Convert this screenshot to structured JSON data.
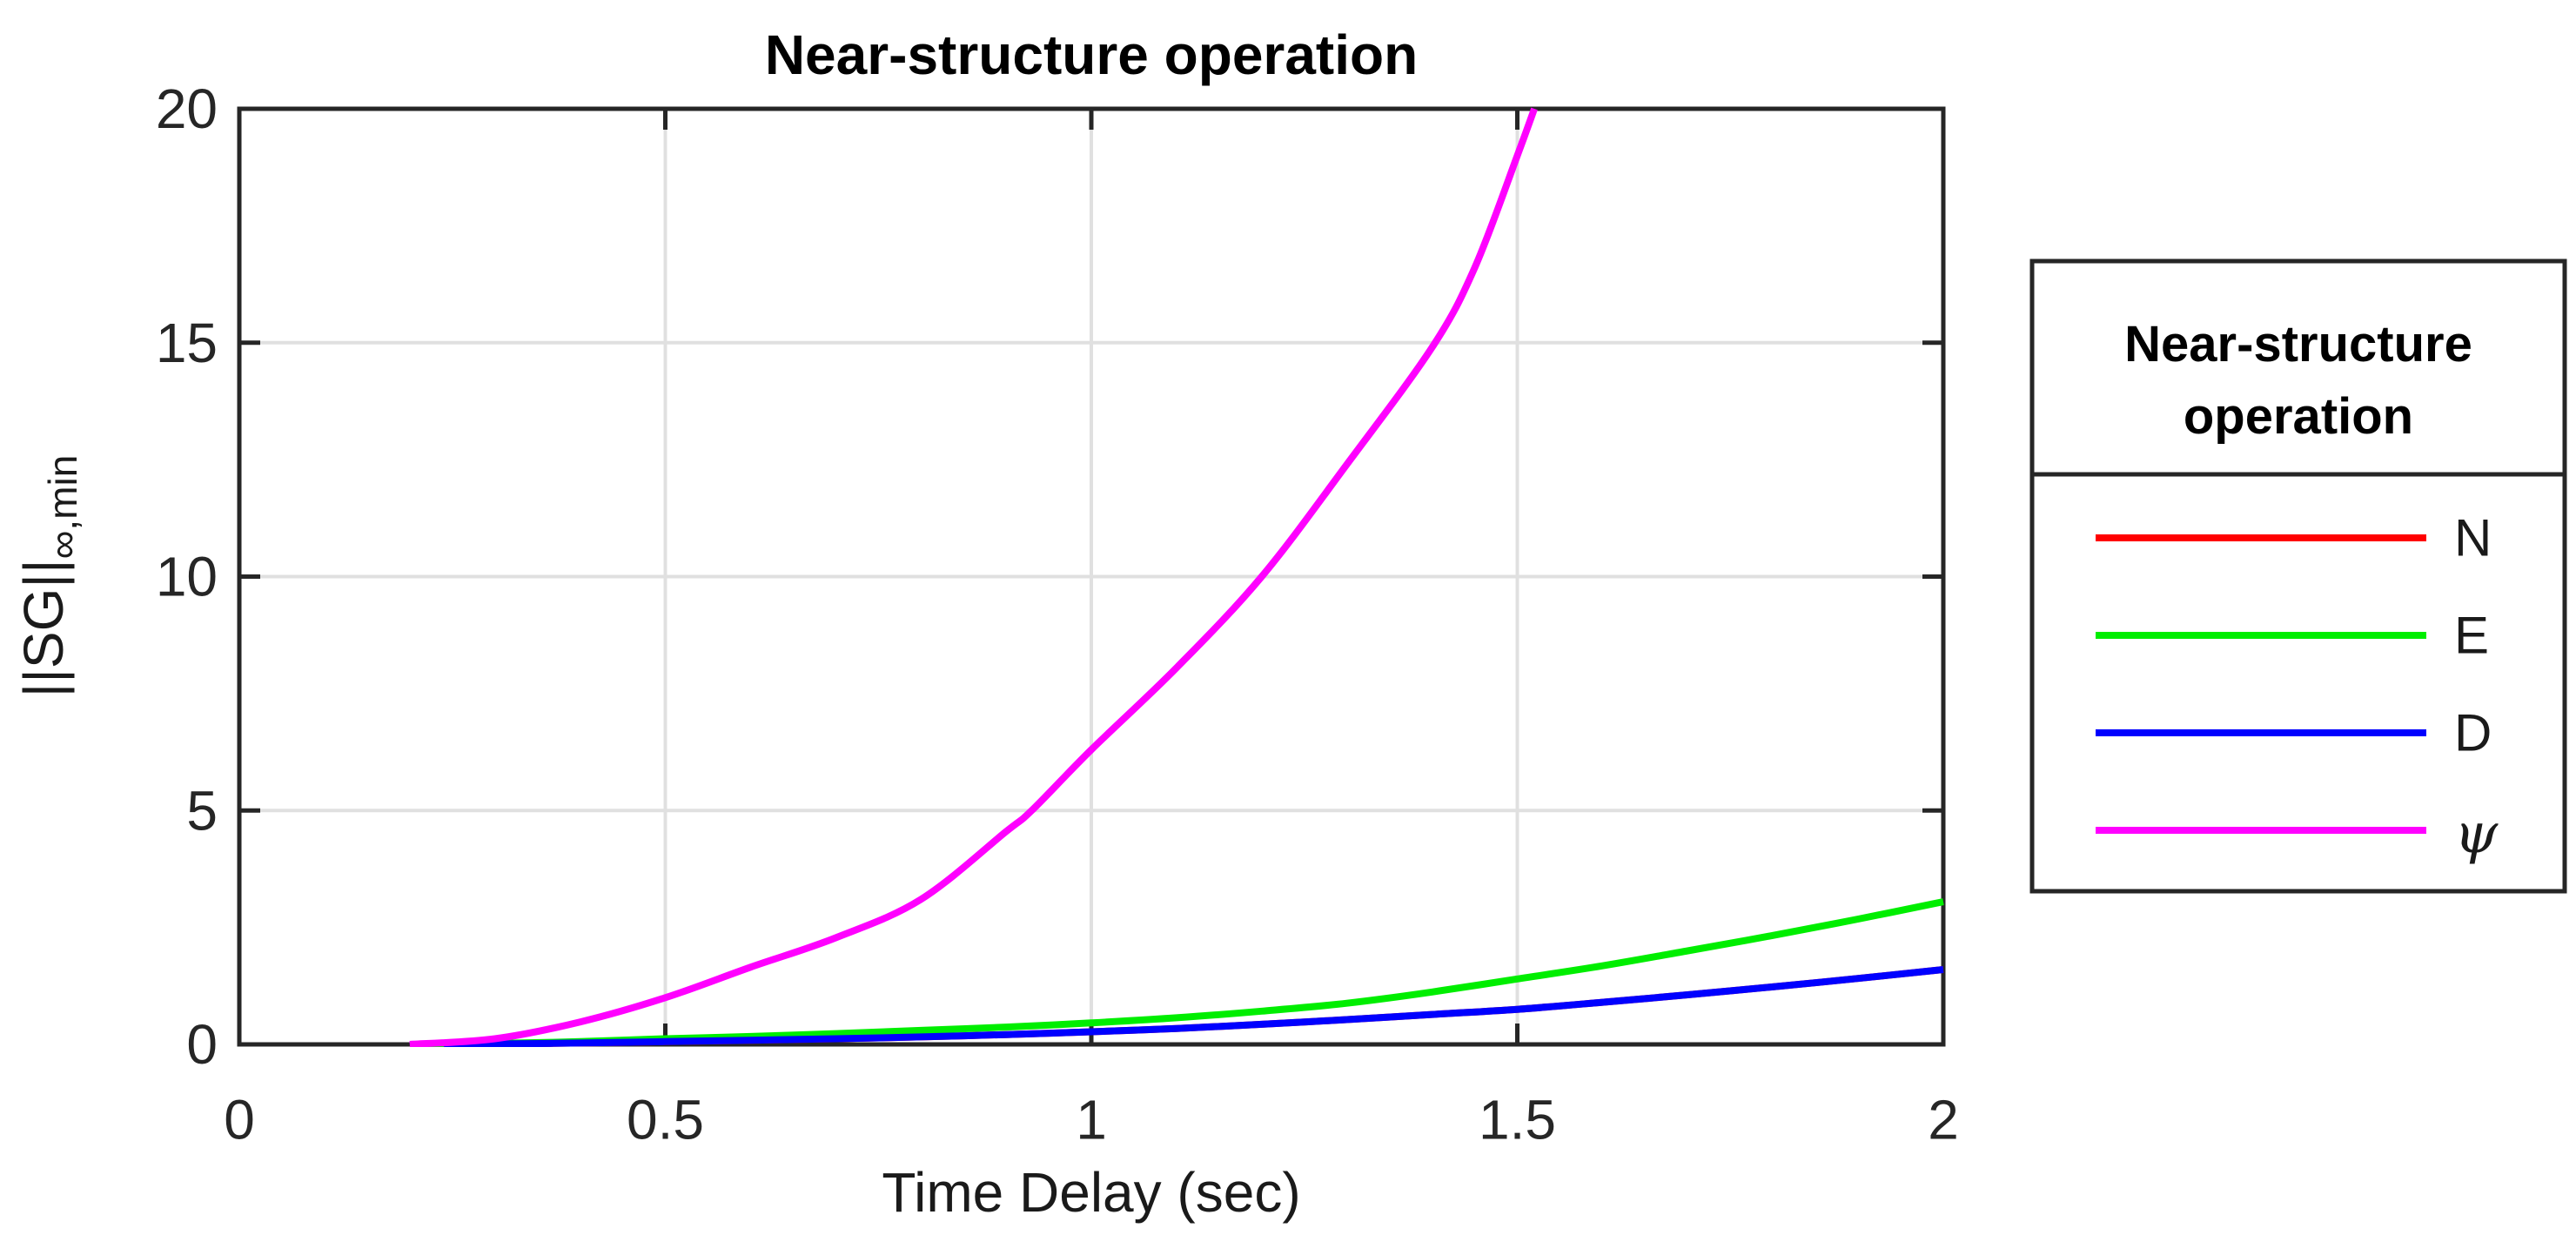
{
  "figure": {
    "background": "#ffffff",
    "axis_color": "#262626",
    "grid_color": "#e0e0e0"
  },
  "chart_data": {
    "type": "line",
    "title": "Near-structure operation",
    "xlabel": "Time Delay (sec)",
    "ylabel": "||SG||_∞,min",
    "ylabel_main": "||SG||",
    "ylabel_sub": "∞,min",
    "xlim": [
      0,
      2
    ],
    "ylim": [
      0,
      20
    ],
    "x_ticks": [
      0,
      0.5,
      1,
      1.5,
      2
    ],
    "x_tick_labels": [
      "0",
      "0.5",
      "1",
      "1.5",
      "2"
    ],
    "y_ticks": [
      0,
      5,
      10,
      15,
      20
    ],
    "y_tick_labels": [
      "0",
      "5",
      "10",
      "15",
      "20"
    ],
    "grid": true,
    "legend": {
      "title_lines": [
        "Near-structure",
        "operation"
      ],
      "position": "outside-right",
      "border_color": "#262626"
    },
    "series": [
      {
        "name": "N",
        "color": "#ff0000",
        "occluded": true,
        "note": "red curve not visible in plot area; coincides with and is hidden beneath the D curve",
        "points": [
          [
            0.24,
            0
          ],
          [
            0.3,
            0.01
          ],
          [
            0.4,
            0.03
          ],
          [
            0.5,
            0.06
          ],
          [
            0.6,
            0.09
          ],
          [
            0.7,
            0.12
          ],
          [
            0.8,
            0.16
          ],
          [
            0.9,
            0.21
          ],
          [
            1.0,
            0.27
          ],
          [
            1.1,
            0.34
          ],
          [
            1.2,
            0.43
          ],
          [
            1.3,
            0.53
          ],
          [
            1.4,
            0.64
          ],
          [
            1.5,
            0.75
          ],
          [
            1.6,
            0.9
          ],
          [
            1.7,
            1.06
          ],
          [
            1.8,
            1.23
          ],
          [
            1.9,
            1.41
          ],
          [
            2.0,
            1.6
          ]
        ]
      },
      {
        "name": "E",
        "color": "#00ee00",
        "points": [
          [
            0.21,
            0
          ],
          [
            0.3,
            0.02
          ],
          [
            0.4,
            0.06
          ],
          [
            0.5,
            0.12
          ],
          [
            0.6,
            0.17
          ],
          [
            0.7,
            0.23
          ],
          [
            0.8,
            0.3
          ],
          [
            0.9,
            0.37
          ],
          [
            1.0,
            0.46
          ],
          [
            1.1,
            0.57
          ],
          [
            1.2,
            0.71
          ],
          [
            1.3,
            0.88
          ],
          [
            1.4,
            1.12
          ],
          [
            1.5,
            1.4
          ],
          [
            1.6,
            1.68
          ],
          [
            1.7,
            2.0
          ],
          [
            1.8,
            2.33
          ],
          [
            1.9,
            2.68
          ],
          [
            2.0,
            3.05
          ]
        ]
      },
      {
        "name": "D",
        "color": "#0000ff",
        "points": [
          [
            0.24,
            0
          ],
          [
            0.3,
            0.01
          ],
          [
            0.4,
            0.03
          ],
          [
            0.5,
            0.06
          ],
          [
            0.6,
            0.09
          ],
          [
            0.7,
            0.12
          ],
          [
            0.8,
            0.16
          ],
          [
            0.9,
            0.21
          ],
          [
            1.0,
            0.27
          ],
          [
            1.1,
            0.34
          ],
          [
            1.2,
            0.43
          ],
          [
            1.3,
            0.53
          ],
          [
            1.4,
            0.64
          ],
          [
            1.5,
            0.75
          ],
          [
            1.6,
            0.9
          ],
          [
            1.7,
            1.06
          ],
          [
            1.8,
            1.23
          ],
          [
            1.9,
            1.41
          ],
          [
            2.0,
            1.6
          ]
        ]
      },
      {
        "name": "ψ",
        "color": "#ff00ff",
        "points": [
          [
            0.2,
            0
          ],
          [
            0.3,
            0.12
          ],
          [
            0.4,
            0.48
          ],
          [
            0.5,
            1.0
          ],
          [
            0.6,
            1.65
          ],
          [
            0.7,
            2.28
          ],
          [
            0.8,
            3.1
          ],
          [
            0.9,
            4.55
          ],
          [
            0.93,
            5.0
          ],
          [
            1.0,
            6.3
          ],
          [
            1.1,
            8.05
          ],
          [
            1.2,
            10.0
          ],
          [
            1.3,
            12.4
          ],
          [
            1.4,
            14.9
          ],
          [
            1.45,
            16.6
          ],
          [
            1.5,
            19.0
          ],
          [
            1.52,
            20.0
          ]
        ]
      }
    ]
  }
}
